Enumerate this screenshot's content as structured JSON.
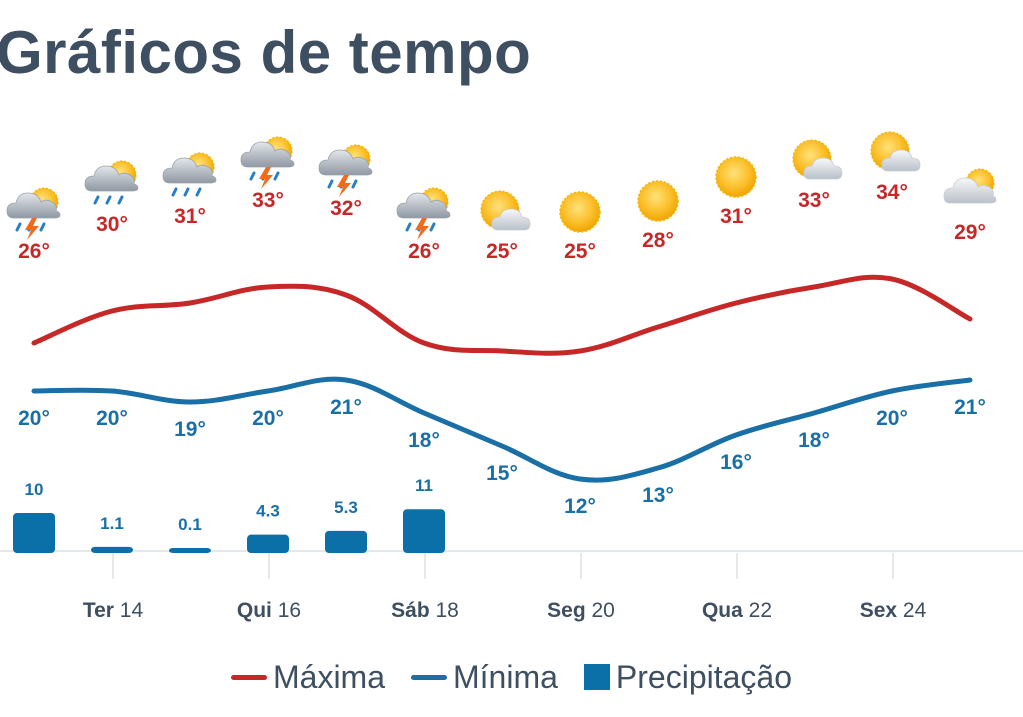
{
  "title": "Gráficos de tempo",
  "colors": {
    "max": "#c62828",
    "min": "#1a6fa6",
    "precip": "#0b6fa8",
    "text": "#3d4f60",
    "axis": "#e6e9ec"
  },
  "legend": {
    "max": "Máxima",
    "min": "Mínima",
    "precip": "Precipitação"
  },
  "chart_data": {
    "type": "line",
    "days": [
      {
        "icon": "thunderstorm-rain-icon"
      },
      {
        "icon": "rain-partly-sunny-icon"
      },
      {
        "icon": "rain-partly-sunny-icon"
      },
      {
        "icon": "thunderstorm-rain-icon"
      },
      {
        "icon": "thunderstorm-rain-icon"
      },
      {
        "icon": "thunderstorm-rain-icon"
      },
      {
        "icon": "partly-cloudy-icon"
      },
      {
        "icon": "sun-icon"
      },
      {
        "icon": "sun-icon"
      },
      {
        "icon": "sun-icon"
      },
      {
        "icon": "partly-cloudy-icon"
      },
      {
        "icon": "partly-cloudy-icon"
      },
      {
        "icon": "cloudy-sun-icon"
      }
    ],
    "x_ticks": [
      {
        "day": "Ter",
        "num": "14",
        "index": 1
      },
      {
        "day": "Qui",
        "num": "16",
        "index": 3
      },
      {
        "day": "Sáb",
        "num": "18",
        "index": 5
      },
      {
        "day": "Seg",
        "num": "20",
        "index": 7
      },
      {
        "day": "Qua",
        "num": "22",
        "index": 9
      },
      {
        "day": "Sex",
        "num": "24",
        "index": 11
      }
    ],
    "series": [
      {
        "name": "Máxima",
        "values": [
          26,
          30,
          31,
          33,
          32,
          26,
          25,
          25,
          28,
          31,
          33,
          34,
          29
        ],
        "labels": [
          "26°",
          "30°",
          "31°",
          "33°",
          "32°",
          "26°",
          "25°",
          "25°",
          "28°",
          "31°",
          "33°",
          "34°",
          "29°"
        ]
      },
      {
        "name": "Mínima",
        "values": [
          20,
          20,
          19,
          20,
          21,
          18,
          15,
          12,
          13,
          16,
          18,
          20,
          21
        ],
        "labels": [
          "20°",
          "20°",
          "19°",
          "20°",
          "21°",
          "18°",
          "15°",
          "12°",
          "13°",
          "16°",
          "18°",
          "20°",
          "21°"
        ]
      },
      {
        "name": "Precipitação",
        "values": [
          10,
          1.1,
          0.1,
          4.3,
          5.3,
          11,
          0,
          0,
          0,
          0,
          0,
          0,
          0
        ],
        "labels": [
          "10",
          "1.1",
          "0.1",
          "4.3",
          "5.3",
          "11",
          "",
          "",
          "",
          "",
          "",
          "",
          ""
        ]
      }
    ]
  }
}
